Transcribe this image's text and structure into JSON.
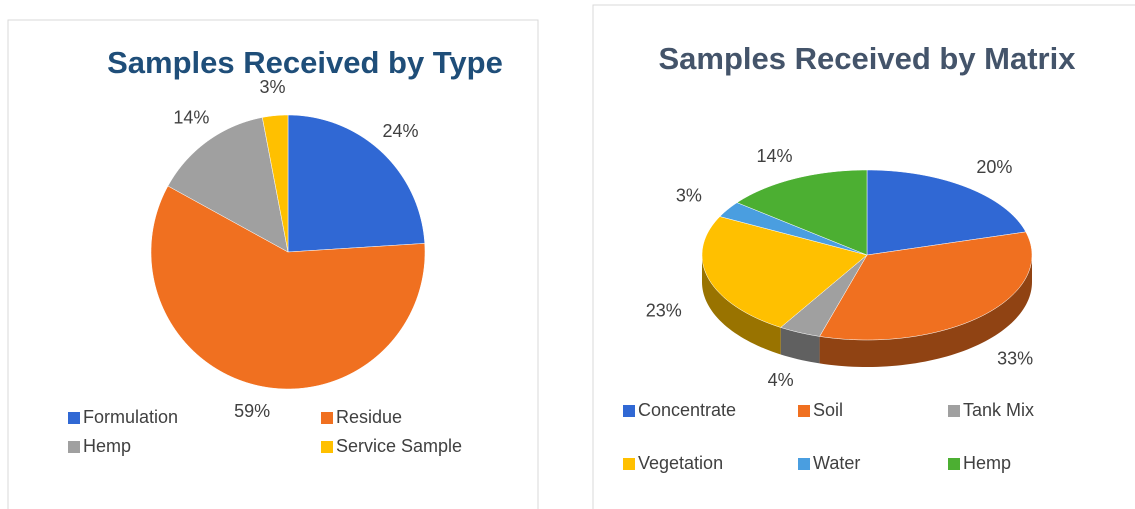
{
  "chart_data": [
    {
      "type": "pie",
      "title": "Samples Received by Type",
      "categories": [
        "Formulation",
        "Residue",
        "Hemp",
        "Service Sample"
      ],
      "values": [
        24,
        59,
        14,
        3
      ],
      "value_labels": [
        "24%",
        "59%",
        "14%",
        "3%"
      ],
      "colors": [
        "#3068d4",
        "#f07020",
        "#a0a0a0",
        "#ffc000"
      ]
    },
    {
      "type": "pie3d",
      "title": "Samples Received by Matrix",
      "categories": [
        "Concentrate",
        "Soil",
        "Tank Mix",
        "Vegetation",
        "Water",
        "Hemp"
      ],
      "values": [
        20,
        33,
        4,
        23,
        3,
        14
      ],
      "value_labels": [
        "20%",
        "33%",
        "4%",
        "23%",
        "3%",
        "14%"
      ],
      "colors": [
        "#3068d4",
        "#f07020",
        "#a0a0a0",
        "#ffc000",
        "#4a9ee0",
        "#4caf32"
      ]
    }
  ]
}
